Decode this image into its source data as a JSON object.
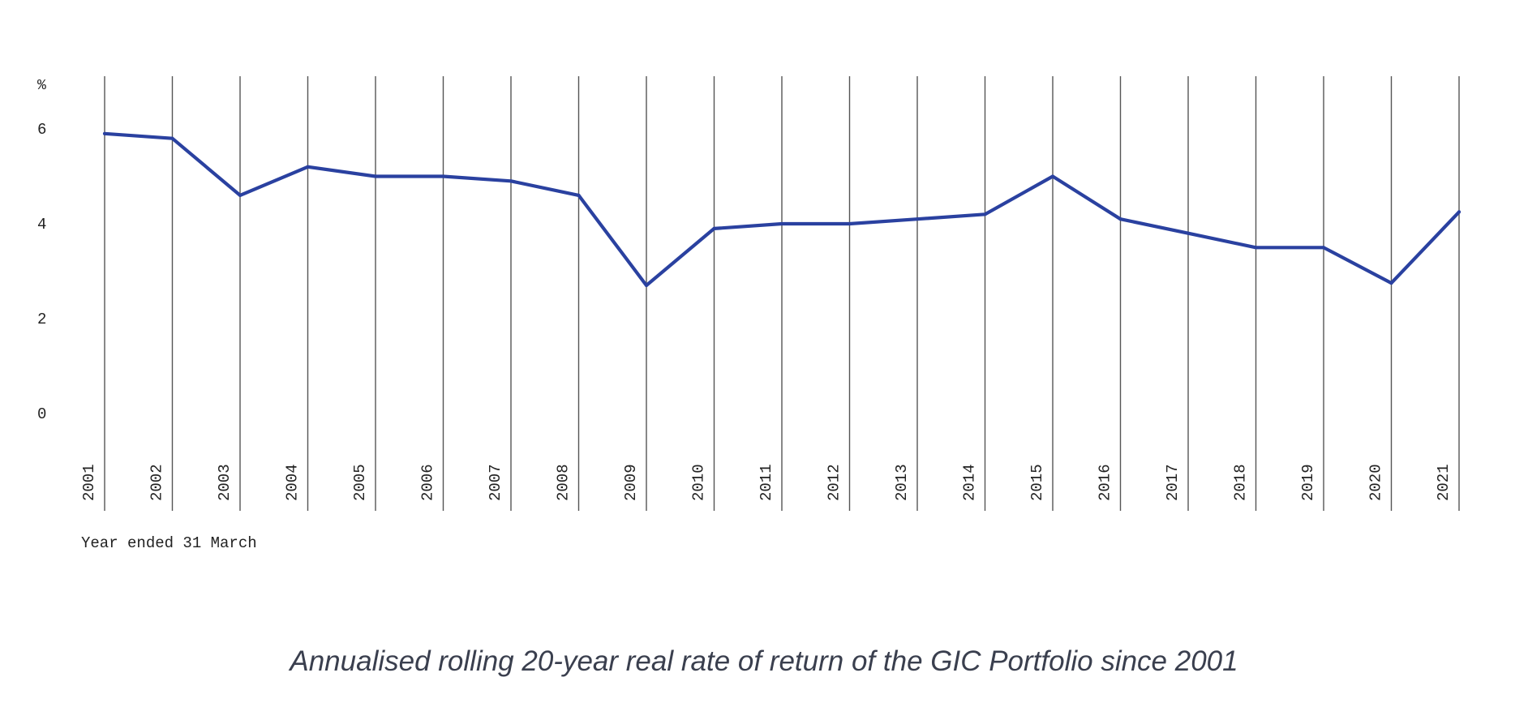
{
  "chart_data": {
    "type": "line",
    "y_unit_label": "%",
    "xlabel": "Year ended 31 March",
    "ylabel": "",
    "x": [
      "2001",
      "2002",
      "2003",
      "2004",
      "2005",
      "2006",
      "2007",
      "2008",
      "2009",
      "2010",
      "2011",
      "2012",
      "2013",
      "2014",
      "2015",
      "2016",
      "2017",
      "2018",
      "2019",
      "2020",
      "2021"
    ],
    "series": [
      {
        "values": [
          5.9,
          5.8,
          4.6,
          5.2,
          5.0,
          5.0,
          4.9,
          4.6,
          2.7,
          3.9,
          4.0,
          4.0,
          4.1,
          4.2,
          5.0,
          4.1,
          3.8,
          3.5,
          3.5,
          2.75,
          4.25
        ],
        "color": "#2a41a0"
      }
    ],
    "y_ticks": [
      "0",
      "2",
      "4",
      "6"
    ],
    "ylim": [
      0,
      7
    ],
    "grid": "vertical",
    "legend": "none"
  },
  "caption": "Annualised rolling 20-year real rate of return of the GIC Portfolio since 2001"
}
